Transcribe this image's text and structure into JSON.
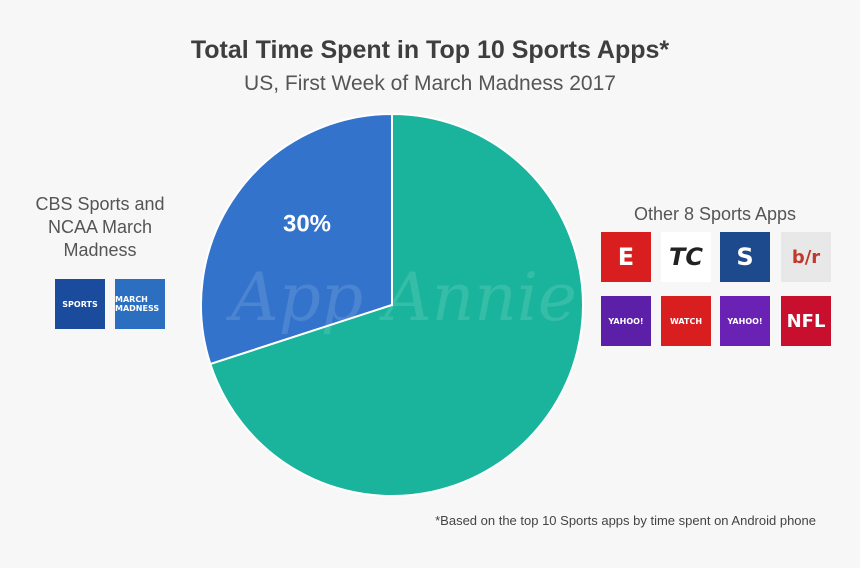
{
  "title": "Total Time Spent in Top 10 Sports Apps*",
  "subtitle": "US, First Week of March Madness 2017",
  "watermark": "App Annie",
  "left_group": {
    "label": "CBS Sports and NCAA March Madness",
    "icons": [
      {
        "name": "cbs-sports-icon",
        "text": "SPORTS",
        "color": "#1a4b9c"
      },
      {
        "name": "ncaa-march-madness-icon",
        "text": "MARCH MADNESS",
        "color": "#2c6fc0"
      }
    ]
  },
  "right_group": {
    "label": "Other 8 Sports Apps",
    "icons": [
      {
        "name": "espn-icon",
        "text": "E",
        "color": "#d81e1e"
      },
      {
        "name": "espn-tournament-challenge-icon",
        "text": "TC",
        "color": "#ffffff"
      },
      {
        "name": "scoreboard-s-icon",
        "text": "S",
        "color": "#1c4a8c"
      },
      {
        "name": "bleacher-report-icon",
        "text": "b/r",
        "color": "#e8e8e8"
      },
      {
        "name": "yahoo-fantasy-icon",
        "text": "YAHOO!",
        "color": "#5b1fa8"
      },
      {
        "name": "watch-espn-icon",
        "text": "WATCH",
        "color": "#d81e1e"
      },
      {
        "name": "yahoo-sports-icon",
        "text": "YAHOO!",
        "color": "#6a22b5"
      },
      {
        "name": "nfl-icon",
        "text": "NFL",
        "color": "#c8102e"
      }
    ]
  },
  "chart_data": {
    "type": "pie",
    "slices": [
      {
        "value": 30,
        "color": "#3373cb",
        "data_label": "30%"
      },
      {
        "value": 70,
        "color": "#1ab49c",
        "data_label": ""
      }
    ]
  },
  "footnote": "*Based on the top 10 Sports apps by time spent on Android phone"
}
